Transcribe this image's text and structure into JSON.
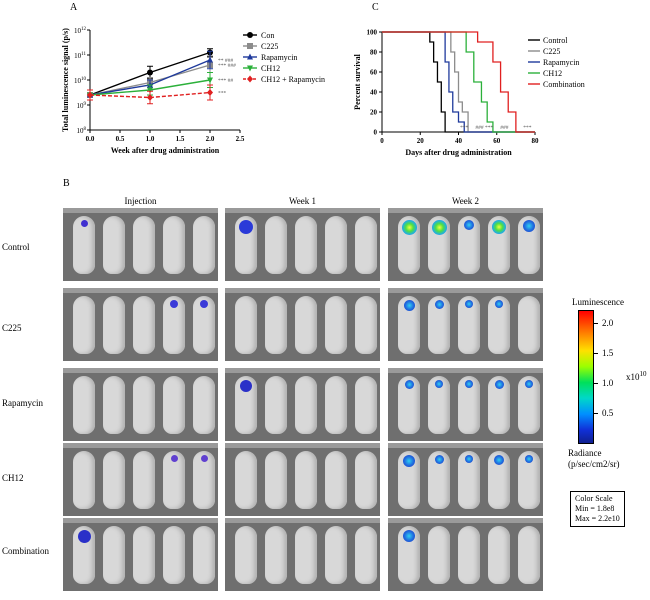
{
  "panel_labels": {
    "a": "A",
    "b": "B",
    "c": "C"
  },
  "chart_data": [
    {
      "type": "line",
      "panel": "A",
      "title": "",
      "xlabel": "Week after drug administration",
      "ylabel": "Total luminescence signal (p/s)",
      "x_ticks": [
        "0.0",
        "0.5",
        "1.0",
        "1.5",
        "2.0",
        "2.5"
      ],
      "xlim": [
        0,
        2.5
      ],
      "y_scale": "log",
      "y_tick_exponents": [
        8,
        9,
        10,
        11,
        12
      ],
      "ylim_exponent": [
        8,
        12
      ],
      "x": [
        0,
        1,
        2
      ],
      "series": [
        {
          "name": "Con",
          "color": "#000000",
          "marker": "circle",
          "dash": false,
          "values_exp": [
            9.4,
            10.3,
            11.1
          ],
          "err_exp": [
            0.2,
            0.25,
            0.15
          ]
        },
        {
          "name": "C225",
          "color": "#8c8c8c",
          "marker": "square",
          "dash": false,
          "values_exp": [
            9.4,
            9.9,
            10.6
          ],
          "err_exp": [
            0.2,
            0.2,
            0.3
          ]
        },
        {
          "name": "Rapamycin",
          "color": "#1f3a9c",
          "marker": "triangle-up",
          "dash": false,
          "values_exp": [
            9.4,
            9.8,
            10.8
          ],
          "err_exp": [
            0.2,
            0.2,
            0.35
          ]
        },
        {
          "name": "CH12",
          "color": "#2bb03a",
          "marker": "triangle-down",
          "dash": false,
          "values_exp": [
            9.4,
            9.6,
            10.0
          ],
          "err_exp": [
            0.2,
            0.2,
            0.3
          ]
        },
        {
          "name": "CH12 + Rapamycin",
          "color": "#e02020",
          "marker": "diamond",
          "dash": true,
          "values_exp": [
            9.4,
            9.3,
            9.5
          ],
          "err_exp": [
            0.2,
            0.25,
            0.3
          ]
        }
      ],
      "annotations": [
        {
          "series": "Rapamycin",
          "text": "**   ###"
        },
        {
          "series": "C225",
          "text": "***  ###"
        },
        {
          "series": "CH12",
          "text": "***  ##"
        },
        {
          "series": "CH12 + Rapamycin",
          "text": "***"
        }
      ]
    },
    {
      "type": "line",
      "panel": "C",
      "title": "",
      "xlabel": "Days after drug administration",
      "ylabel": "Percent survival",
      "x_ticks": [
        0,
        20,
        40,
        60,
        80
      ],
      "y_ticks": [
        0,
        20,
        40,
        60,
        80,
        100
      ],
      "xlim": [
        0,
        80
      ],
      "ylim": [
        0,
        100
      ],
      "series": [
        {
          "name": "Control",
          "color": "#000000",
          "x": [
            0,
            25,
            27,
            29,
            31,
            33,
            80
          ],
          "y": [
            100,
            90,
            70,
            50,
            20,
            0,
            0
          ]
        },
        {
          "name": "C225",
          "color": "#8c8c8c",
          "x": [
            0,
            36,
            38,
            40,
            42,
            45,
            80
          ],
          "y": [
            100,
            80,
            60,
            30,
            20,
            0,
            0
          ]
        },
        {
          "name": "Rapamycin",
          "color": "#1f3a9c",
          "x": [
            0,
            33,
            35,
            37,
            40,
            43,
            80
          ],
          "y": [
            100,
            70,
            40,
            20,
            10,
            0,
            0
          ]
        },
        {
          "name": "CH12",
          "color": "#2bb03a",
          "x": [
            0,
            44,
            48,
            52,
            55,
            58,
            80
          ],
          "y": [
            100,
            80,
            50,
            30,
            10,
            0,
            0
          ]
        },
        {
          "name": "Combination",
          "color": "#e02020",
          "x": [
            0,
            50,
            58,
            62,
            66,
            70,
            80
          ],
          "y": [
            100,
            90,
            70,
            40,
            20,
            0,
            0
          ]
        }
      ],
      "annotations": [
        "***",
        "###",
        "***",
        "###",
        "***"
      ]
    }
  ],
  "imaging": {
    "columns": [
      "Injection",
      "Week  1",
      "Week 2"
    ],
    "rows": [
      "Control",
      "C225",
      "Rapamycin",
      "CH12",
      "Combination"
    ],
    "colorbar": {
      "title": "Luminescence",
      "ticks": [
        "2.0",
        "1.5",
        "1.0",
        "0.5"
      ],
      "tick_values": [
        2.0,
        1.5,
        1.0,
        0.5
      ],
      "max_value": 2.2,
      "min_value": 0.018,
      "multiplier": "x10",
      "exponent": "10",
      "unit_line1": "Radiance",
      "unit_line2": "(p/sec/cm2/sr)"
    },
    "color_scale": {
      "title": "Color Scale",
      "min": "Min = 1.8e8",
      "max": "Max = 2.2e10"
    }
  }
}
